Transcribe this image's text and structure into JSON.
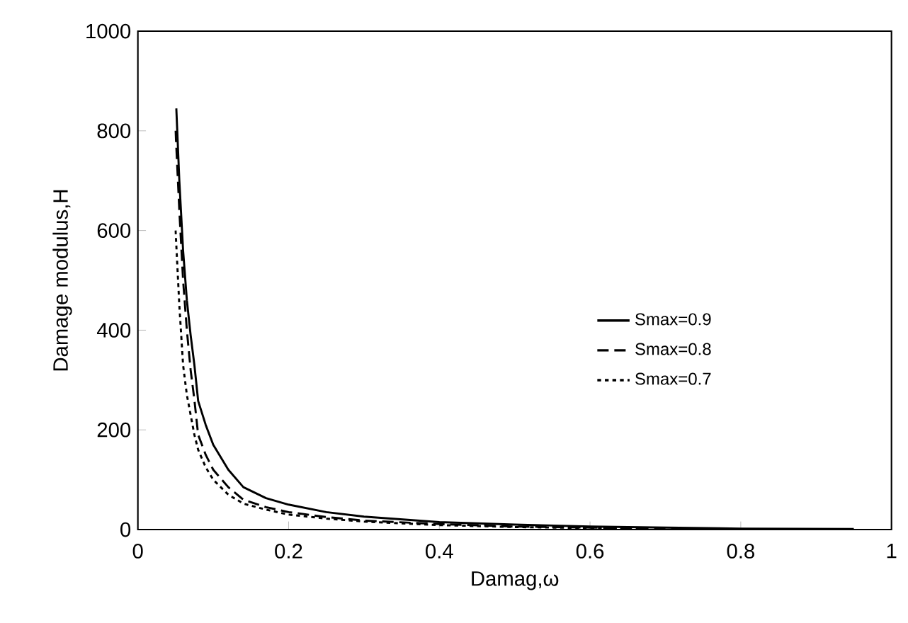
{
  "chart_data": {
    "type": "line",
    "xlabel": "Damag,ω",
    "ylabel": "Damage modulus,H",
    "xlim": [
      0,
      1
    ],
    "ylim": [
      0,
      1000
    ],
    "xticks": [
      0,
      0.2,
      0.4,
      0.6,
      0.8,
      1
    ],
    "yticks": [
      0,
      200,
      400,
      600,
      800,
      1000
    ],
    "legend": "right",
    "grid": false,
    "marker": "none",
    "series": [
      {
        "name": "Smax=0.9",
        "color": "#000000",
        "line_style": "solid",
        "x": [
          0.051,
          0.055,
          0.06,
          0.065,
          0.07,
          0.075,
          0.08,
          0.09,
          0.1,
          0.12,
          0.14,
          0.17,
          0.2,
          0.25,
          0.3,
          0.4,
          0.5,
          0.6,
          0.7,
          0.8,
          0.95
        ],
        "values": [
          845,
          700,
          560,
          460,
          390,
          330,
          258,
          210,
          170,
          120,
          85,
          63,
          50,
          35,
          26,
          15,
          10,
          6,
          4,
          2,
          1
        ]
      },
      {
        "name": "Smax=0.8",
        "color": "#000000",
        "line_style": "dashed",
        "x": [
          0.05,
          0.055,
          0.06,
          0.065,
          0.07,
          0.075,
          0.08,
          0.09,
          0.1,
          0.12,
          0.14,
          0.17,
          0.2,
          0.25,
          0.3,
          0.4,
          0.5,
          0.6,
          0.7,
          0.77
        ],
        "values": [
          800,
          640,
          500,
          400,
          320,
          260,
          190,
          150,
          120,
          85,
          60,
          45,
          35,
          25,
          18,
          11,
          6,
          4,
          2,
          1
        ]
      },
      {
        "name": "Smax=0.7",
        "color": "#000000",
        "line_style": "dotted",
        "x": [
          0.05,
          0.055,
          0.06,
          0.065,
          0.07,
          0.075,
          0.08,
          0.09,
          0.1,
          0.12,
          0.14,
          0.17,
          0.2,
          0.25,
          0.3,
          0.4,
          0.5,
          0.6,
          0.68
        ],
        "values": [
          600,
          450,
          330,
          270,
          230,
          190,
          160,
          125,
          100,
          70,
          52,
          40,
          30,
          22,
          16,
          9,
          5,
          3,
          2
        ]
      }
    ]
  }
}
